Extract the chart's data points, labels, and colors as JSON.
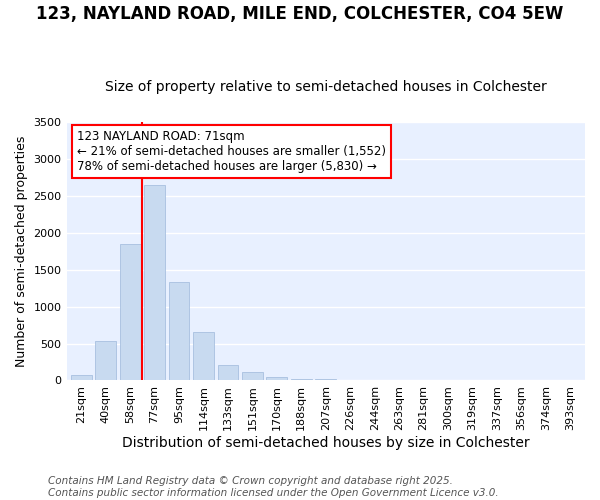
{
  "title": "123, NAYLAND ROAD, MILE END, COLCHESTER, CO4 5EW",
  "subtitle": "Size of property relative to semi-detached houses in Colchester",
  "xlabel": "Distribution of semi-detached houses by size in Colchester",
  "ylabel": "Number of semi-detached properties",
  "categories": [
    "21sqm",
    "40sqm",
    "58sqm",
    "77sqm",
    "95sqm",
    "114sqm",
    "133sqm",
    "151sqm",
    "170sqm",
    "188sqm",
    "207sqm",
    "226sqm",
    "244sqm",
    "263sqm",
    "281sqm",
    "300sqm",
    "319sqm",
    "337sqm",
    "356sqm",
    "374sqm",
    "393sqm"
  ],
  "values": [
    75,
    535,
    1850,
    2650,
    1330,
    650,
    210,
    110,
    50,
    25,
    18,
    12,
    8,
    5,
    3,
    2,
    1,
    1,
    1,
    1,
    1
  ],
  "bar_color": "#c8daf0",
  "bar_edge_color": "#a8c0e0",
  "vline_x_index": 2.5,
  "vline_color": "red",
  "annotation_text": "123 NAYLAND ROAD: 71sqm\n← 21% of semi-detached houses are smaller (1,552)\n78% of semi-detached houses are larger (5,830) →",
  "annotation_box_color": "white",
  "annotation_box_edge_color": "red",
  "footer": "Contains HM Land Registry data © Crown copyright and database right 2025.\nContains public sector information licensed under the Open Government Licence v3.0.",
  "ylim": [
    0,
    3500
  ],
  "yticks": [
    0,
    500,
    1000,
    1500,
    2000,
    2500,
    3000,
    3500
  ],
  "background_color": "#ffffff",
  "plot_bg_color": "#e8f0ff",
  "grid_color": "#ffffff",
  "title_fontsize": 12,
  "subtitle_fontsize": 10,
  "xlabel_fontsize": 10,
  "ylabel_fontsize": 9,
  "tick_fontsize": 8,
  "footer_fontsize": 7.5
}
